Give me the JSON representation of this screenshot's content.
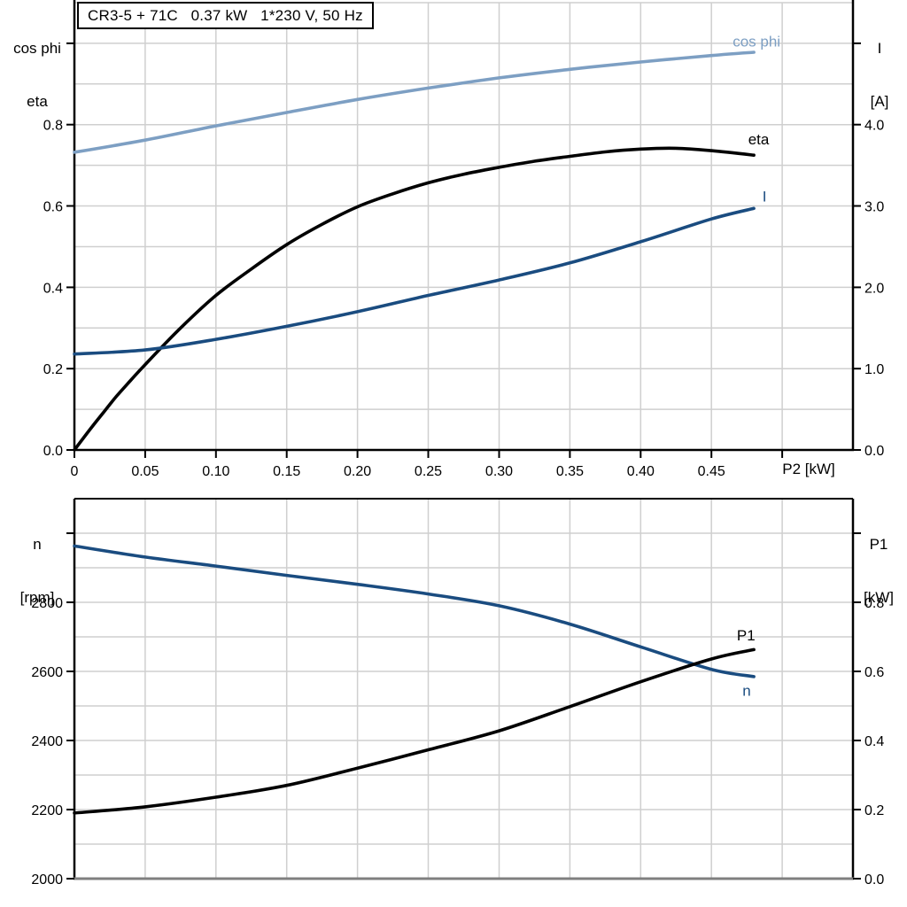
{
  "colors": {
    "grid": "#cfcfcf",
    "axis": "#000000",
    "baseline_gray": "#7f7f7f",
    "light_blue": "#7d9fc3",
    "dark_blue": "#1a4c80",
    "black": "#000000"
  },
  "chart_data": [
    {
      "type": "line",
      "title": "CR3-5 + 71C   0.37 kW   1*230 V, 50 Hz",
      "x_axis": {
        "label": "P2 [kW]",
        "min": 0,
        "max": 0.55,
        "grid_step": 0.05,
        "ticks": [
          {
            "v": 0,
            "l": "0"
          },
          {
            "v": 0.05,
            "l": "0.05"
          },
          {
            "v": 0.1,
            "l": "0.10"
          },
          {
            "v": 0.15,
            "l": "0.15"
          },
          {
            "v": 0.2,
            "l": "0.20"
          },
          {
            "v": 0.25,
            "l": "0.25"
          },
          {
            "v": 0.3,
            "l": "0.30"
          },
          {
            "v": 0.35,
            "l": "0.35"
          },
          {
            "v": 0.4,
            "l": "0.40"
          },
          {
            "v": 0.45,
            "l": "0.45"
          },
          {
            "v": 0.5,
            "l": ""
          }
        ]
      },
      "left_axis": {
        "title1": "cos phi",
        "title2": "eta",
        "min": 0,
        "max": 1.1,
        "ticks": [
          {
            "v": 0,
            "l": "0.0"
          },
          {
            "v": 0.2,
            "l": "0.2"
          },
          {
            "v": 0.4,
            "l": "0.4"
          },
          {
            "v": 0.6,
            "l": "0.6"
          },
          {
            "v": 0.8,
            "l": "0.8"
          },
          {
            "v": 1,
            "l": ""
          }
        ]
      },
      "right_axis": {
        "title1": "I",
        "title2": "[A]",
        "min": 0,
        "max": 5.5,
        "ticks": [
          {
            "v": 0,
            "l": "0.0"
          },
          {
            "v": 1,
            "l": "1.0"
          },
          {
            "v": 2,
            "l": "2.0"
          },
          {
            "v": 3,
            "l": "3.0"
          },
          {
            "v": 4,
            "l": "4.0"
          },
          {
            "v": 5,
            "l": ""
          }
        ]
      },
      "series": [
        {
          "name": "cos phi",
          "axis": "left",
          "color": "#7d9fc3",
          "x": [
            0,
            0.05,
            0.1,
            0.15,
            0.2,
            0.25,
            0.3,
            0.35,
            0.4,
            0.45,
            0.48
          ],
          "y": [
            0.732,
            0.762,
            0.797,
            0.83,
            0.862,
            0.89,
            0.915,
            0.936,
            0.954,
            0.97,
            0.978
          ],
          "label_at": {
            "x": 0.465,
            "y": 1.005
          }
        },
        {
          "name": "eta",
          "axis": "left",
          "color": "#000000",
          "x": [
            0,
            0.01,
            0.02,
            0.03,
            0.04,
            0.05,
            0.075,
            0.1,
            0.125,
            0.15,
            0.175,
            0.2,
            0.225,
            0.25,
            0.275,
            0.3,
            0.325,
            0.35,
            0.375,
            0.4,
            0.425,
            0.45,
            0.48
          ],
          "y": [
            0,
            0.046,
            0.09,
            0.133,
            0.172,
            0.21,
            0.3,
            0.38,
            0.445,
            0.505,
            0.555,
            0.598,
            0.63,
            0.657,
            0.678,
            0.695,
            0.71,
            0.722,
            0.733,
            0.74,
            0.742,
            0.736,
            0.725
          ],
          "label_at": {
            "x": 0.476,
            "y": 0.765
          }
        },
        {
          "name": "I",
          "axis": "right",
          "color": "#1a4c80",
          "x": [
            0,
            0.05,
            0.1,
            0.15,
            0.2,
            0.25,
            0.3,
            0.35,
            0.4,
            0.45,
            0.48
          ],
          "y": [
            1.18,
            1.23,
            1.36,
            1.52,
            1.7,
            1.9,
            2.09,
            2.3,
            2.56,
            2.84,
            2.97
          ],
          "label_at": {
            "x": 0.486,
            "y": 3.12
          }
        }
      ]
    },
    {
      "type": "line",
      "title": "",
      "x_axis": {
        "label": "",
        "min": 0,
        "max": 0.55,
        "grid_step": 0.05,
        "ticks": []
      },
      "left_axis": {
        "title1": "n",
        "title2": "[rpm]",
        "min": 2000,
        "max": 3100,
        "ticks": [
          {
            "v": 2000,
            "l": "2000"
          },
          {
            "v": 2200,
            "l": "2200"
          },
          {
            "v": 2400,
            "l": "2400"
          },
          {
            "v": 2600,
            "l": "2600"
          },
          {
            "v": 2800,
            "l": "2800"
          },
          {
            "v": 3000,
            "l": ""
          }
        ]
      },
      "right_axis": {
        "title1": "P1",
        "title2": "[kW]",
        "min": 0,
        "max": 1.1,
        "ticks": [
          {
            "v": 0,
            "l": "0.0"
          },
          {
            "v": 0.2,
            "l": "0.2"
          },
          {
            "v": 0.4,
            "l": "0.4"
          },
          {
            "v": 0.6,
            "l": "0.6"
          },
          {
            "v": 0.8,
            "l": "0.8"
          },
          {
            "v": 1,
            "l": ""
          }
        ]
      },
      "series": [
        {
          "name": "n",
          "axis": "left",
          "color": "#1a4c80",
          "x": [
            0,
            0.05,
            0.1,
            0.15,
            0.2,
            0.25,
            0.3,
            0.35,
            0.4,
            0.45,
            0.48
          ],
          "y": [
            2963,
            2931,
            2905,
            2878,
            2852,
            2824,
            2790,
            2737,
            2671,
            2606,
            2585
          ],
          "label_at": {
            "x": 0.472,
            "y": 2545
          }
        },
        {
          "name": "P1",
          "axis": "right",
          "color": "#000000",
          "x": [
            0,
            0.05,
            0.1,
            0.15,
            0.2,
            0.25,
            0.3,
            0.35,
            0.4,
            0.45,
            0.48
          ],
          "y": [
            0.19,
            0.208,
            0.236,
            0.27,
            0.32,
            0.373,
            0.428,
            0.498,
            0.57,
            0.636,
            0.663
          ],
          "label_at": {
            "x": 0.468,
            "y": 0.705
          }
        }
      ]
    }
  ]
}
